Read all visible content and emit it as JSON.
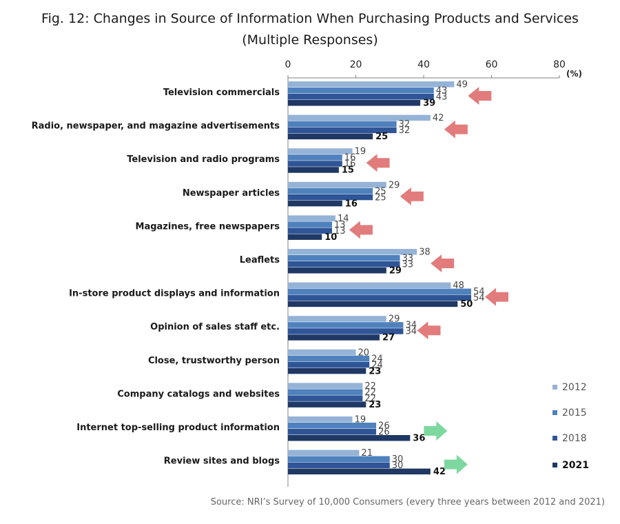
{
  "chart_data": {
    "type": "bar",
    "orientation": "horizontal",
    "title": "Fig. 12: Changes in Source of Information When Purchasing Products and Services",
    "subtitle": "(Multiple Responses)",
    "unit": "(%)",
    "xlim": [
      0,
      80
    ],
    "xticks": [
      0,
      20,
      40,
      60,
      80
    ],
    "categories": [
      "Television commercials",
      "Radio, newspaper, and magazine advertisements",
      "Television and radio programs",
      "Newspaper articles",
      "Magazines, free newspapers",
      "Leaflets",
      "In-store product displays and information",
      "Opinion of sales staff etc.",
      "Close, trustworthy person",
      "Company catalogs and websites",
      "Internet top-selling product information",
      "Review sites and blogs"
    ],
    "series": [
      {
        "name": "2012",
        "color": "#95B3D7",
        "values": [
          49,
          42,
          19,
          29,
          14,
          38,
          48,
          29,
          20,
          22,
          19,
          21
        ]
      },
      {
        "name": "2015",
        "color": "#4F81BD",
        "values": [
          43,
          32,
          16,
          25,
          13,
          33,
          54,
          34,
          24,
          22,
          26,
          30
        ]
      },
      {
        "name": "2018",
        "color": "#2F5597",
        "values": [
          43,
          32,
          16,
          25,
          13,
          33,
          54,
          34,
          24,
          22,
          26,
          30
        ]
      },
      {
        "name": "2021",
        "color": "#1F3864",
        "values": [
          39,
          25,
          15,
          16,
          10,
          29,
          50,
          27,
          23,
          23,
          36,
          42
        ]
      }
    ],
    "trend_arrows": [
      "down",
      "down",
      "down",
      "down",
      "down",
      "down",
      "down",
      "down",
      "none",
      "none",
      "up",
      "up"
    ],
    "arrow_colors": {
      "down": "#E27C7C",
      "up": "#7DD8A0"
    },
    "legend_position": "bottom-right",
    "grid": false
  },
  "source": "Source: NRI’s Survey of 10,000 Consumers (every three years between 2012 and 2021)"
}
